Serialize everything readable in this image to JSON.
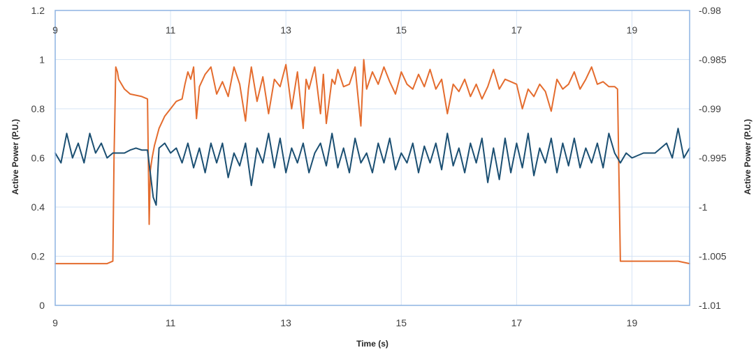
{
  "chart_data": {
    "type": "line",
    "title": "",
    "xlabel": "Time (s)",
    "ylabel_left": "Active Power (P.U.)",
    "ylabel_right": "Active Power (P.U.)",
    "xlim": [
      9,
      20
    ],
    "ylim_left": [
      0,
      1.2
    ],
    "ylim_right": [
      -1.01,
      -0.98
    ],
    "x_ticks": [
      "9",
      "11",
      "13",
      "15",
      "17",
      "19"
    ],
    "x_tick_values": [
      9,
      11,
      13,
      15,
      17,
      19
    ],
    "y_left_ticks": [
      "0",
      "0.2",
      "0.4",
      "0.6",
      "0.8",
      "1",
      "1.2"
    ],
    "y_left_tick_values": [
      0,
      0.2,
      0.4,
      0.6,
      0.8,
      1.0,
      1.2
    ],
    "y_right_ticks": [
      "-1.01",
      "-1.005",
      "-1",
      "-0.995",
      "-0.99",
      "-0.985",
      "-0.98"
    ],
    "y_right_tick_values": [
      -1.01,
      -1.005,
      -1.0,
      -0.995,
      -0.99,
      -0.985,
      -0.98
    ],
    "grid": true,
    "legend": "none",
    "colors": {
      "orange": "#E46C2E",
      "blue": "#1B4F72",
      "axis": "#8DB3E2",
      "grid": "#D6E4F5"
    },
    "series": [
      {
        "axis": "left",
        "color": "#E46C2E",
        "x": [
          9.0,
          9.3,
          9.6,
          9.9,
          10.0,
          10.02,
          10.05,
          10.08,
          10.1,
          10.2,
          10.3,
          10.5,
          10.6,
          10.63,
          10.65,
          10.68,
          10.72,
          10.8,
          10.9,
          11.0,
          11.1,
          11.2,
          11.25,
          11.3,
          11.35,
          11.4,
          11.45,
          11.5,
          11.6,
          11.7,
          11.8,
          11.9,
          12.0,
          12.1,
          12.2,
          12.3,
          12.35,
          12.4,
          12.5,
          12.6,
          12.7,
          12.8,
          12.9,
          13.0,
          13.1,
          13.2,
          13.3,
          13.35,
          13.4,
          13.5,
          13.6,
          13.65,
          13.7,
          13.8,
          13.85,
          13.9,
          14.0,
          14.1,
          14.2,
          14.3,
          14.35,
          14.4,
          14.5,
          14.6,
          14.7,
          14.8,
          14.9,
          15.0,
          15.1,
          15.2,
          15.3,
          15.4,
          15.5,
          15.6,
          15.7,
          15.8,
          15.9,
          16.0,
          16.1,
          16.2,
          16.3,
          16.4,
          16.5,
          16.6,
          16.7,
          16.8,
          16.9,
          17.0,
          17.1,
          17.2,
          17.3,
          17.4,
          17.5,
          17.6,
          17.7,
          17.8,
          17.9,
          18.0,
          18.1,
          18.2,
          18.3,
          18.4,
          18.5,
          18.6,
          18.7,
          18.75,
          18.8,
          18.9,
          19.0,
          19.2,
          19.5,
          19.8,
          20.0
        ],
        "y": [
          0.17,
          0.17,
          0.17,
          0.17,
          0.18,
          0.6,
          0.97,
          0.95,
          0.92,
          0.88,
          0.86,
          0.85,
          0.84,
          0.33,
          0.55,
          0.6,
          0.65,
          0.72,
          0.77,
          0.8,
          0.83,
          0.84,
          0.9,
          0.95,
          0.92,
          0.97,
          0.76,
          0.89,
          0.94,
          0.97,
          0.86,
          0.91,
          0.85,
          0.97,
          0.9,
          0.75,
          0.88,
          0.97,
          0.83,
          0.93,
          0.78,
          0.92,
          0.89,
          0.98,
          0.8,
          0.95,
          0.72,
          0.92,
          0.88,
          0.97,
          0.78,
          0.94,
          0.74,
          0.92,
          0.9,
          0.96,
          0.89,
          0.9,
          0.97,
          0.73,
          1.0,
          0.88,
          0.95,
          0.9,
          0.97,
          0.91,
          0.86,
          0.95,
          0.9,
          0.88,
          0.94,
          0.89,
          0.96,
          0.88,
          0.92,
          0.78,
          0.9,
          0.87,
          0.92,
          0.85,
          0.9,
          0.84,
          0.89,
          0.96,
          0.88,
          0.92,
          0.91,
          0.9,
          0.8,
          0.88,
          0.85,
          0.9,
          0.87,
          0.79,
          0.92,
          0.88,
          0.9,
          0.95,
          0.88,
          0.92,
          0.97,
          0.9,
          0.91,
          0.89,
          0.89,
          0.88,
          0.18,
          0.18,
          0.18,
          0.18,
          0.18,
          0.18,
          0.17
        ]
      },
      {
        "axis": "right",
        "color": "#1B4F72",
        "x": [
          9.0,
          9.1,
          9.2,
          9.3,
          9.4,
          9.5,
          9.6,
          9.7,
          9.8,
          9.9,
          10.0,
          10.1,
          10.2,
          10.3,
          10.4,
          10.5,
          10.6,
          10.7,
          10.75,
          10.8,
          10.9,
          11.0,
          11.1,
          11.2,
          11.3,
          11.4,
          11.5,
          11.6,
          11.7,
          11.8,
          11.9,
          12.0,
          12.1,
          12.2,
          12.3,
          12.4,
          12.5,
          12.6,
          12.7,
          12.8,
          12.9,
          13.0,
          13.1,
          13.2,
          13.3,
          13.4,
          13.5,
          13.6,
          13.7,
          13.8,
          13.9,
          14.0,
          14.1,
          14.2,
          14.3,
          14.4,
          14.5,
          14.6,
          14.7,
          14.8,
          14.9,
          15.0,
          15.1,
          15.2,
          15.3,
          15.4,
          15.5,
          15.6,
          15.7,
          15.8,
          15.9,
          16.0,
          16.1,
          16.2,
          16.3,
          16.4,
          16.5,
          16.6,
          16.7,
          16.8,
          16.9,
          17.0,
          17.1,
          17.2,
          17.3,
          17.4,
          17.5,
          17.6,
          17.7,
          17.8,
          17.9,
          18.0,
          18.1,
          18.2,
          18.3,
          18.4,
          18.5,
          18.6,
          18.7,
          18.8,
          18.9,
          19.0,
          19.2,
          19.4,
          19.6,
          19.7,
          19.8,
          19.9,
          20.0
        ],
        "y": [
          -0.9945,
          -0.9955,
          -0.9925,
          -0.995,
          -0.9935,
          -0.9955,
          -0.9925,
          -0.9945,
          -0.9935,
          -0.995,
          -0.9945,
          -0.9945,
          -0.9945,
          -0.9942,
          -0.994,
          -0.9942,
          -0.9942,
          -0.999,
          -0.9998,
          -0.994,
          -0.9935,
          -0.9945,
          -0.994,
          -0.9955,
          -0.9935,
          -0.996,
          -0.994,
          -0.9965,
          -0.9935,
          -0.9955,
          -0.9935,
          -0.997,
          -0.9945,
          -0.9958,
          -0.9935,
          -0.9978,
          -0.994,
          -0.9955,
          -0.9925,
          -0.996,
          -0.993,
          -0.9965,
          -0.994,
          -0.9955,
          -0.9935,
          -0.9965,
          -0.9945,
          -0.9935,
          -0.9958,
          -0.9925,
          -0.996,
          -0.994,
          -0.9965,
          -0.993,
          -0.9955,
          -0.9945,
          -0.9965,
          -0.9935,
          -0.9955,
          -0.993,
          -0.9962,
          -0.9945,
          -0.9955,
          -0.9935,
          -0.9965,
          -0.9938,
          -0.9955,
          -0.9935,
          -0.9962,
          -0.9925,
          -0.9958,
          -0.994,
          -0.9965,
          -0.9935,
          -0.9955,
          -0.993,
          -0.9975,
          -0.994,
          -0.9972,
          -0.993,
          -0.9965,
          -0.9935,
          -0.996,
          -0.9925,
          -0.9968,
          -0.994,
          -0.9955,
          -0.993,
          -0.9965,
          -0.9935,
          -0.9958,
          -0.993,
          -0.996,
          -0.994,
          -0.9955,
          -0.9935,
          -0.996,
          -0.9925,
          -0.9945,
          -0.9955,
          -0.9945,
          -0.995,
          -0.9945,
          -0.9945,
          -0.9935,
          -0.995,
          -0.992,
          -0.995,
          -0.994
        ]
      }
    ]
  }
}
